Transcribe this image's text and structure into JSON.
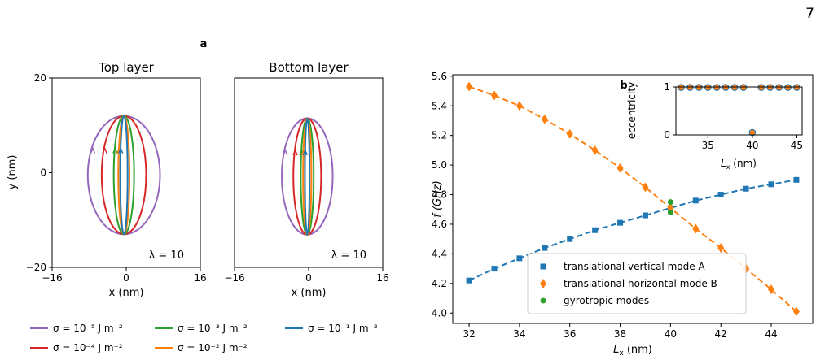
{
  "page_number": "7",
  "colors": {
    "purple": "#9467bd",
    "red": "#d62728",
    "green": "#2ca02c",
    "orange": "#ff7f0e",
    "blue": "#1f77b4"
  },
  "chart_data": [
    {
      "panel": "a",
      "type": "line",
      "title": "Top layer",
      "xlabel": "x (nm)",
      "ylabel": "y (nm)",
      "xlim": [
        -16,
        16
      ],
      "ylim": [
        -20,
        20
      ],
      "xticks": [
        "−16",
        "0",
        "16"
      ],
      "yticks": [
        "20",
        "0",
        "−20"
      ],
      "annotation": "λ = 10",
      "series": [
        {
          "name": "σ = 10⁻⁵ J m⁻²",
          "color": "#9467bd",
          "center_x": -0.5,
          "center_y": -0.5,
          "semi_x": 7.8,
          "semi_y": 12.5
        },
        {
          "name": "σ = 10⁻⁴ J m⁻²",
          "color": "#d62728",
          "center_x": -0.5,
          "center_y": -0.5,
          "semi_x": 4.8,
          "semi_y": 12.5
        },
        {
          "name": "σ = 10⁻³ J m⁻²",
          "color": "#2ca02c",
          "center_x": -0.5,
          "center_y": -0.5,
          "semi_x": 2.2,
          "semi_y": 12.5
        },
        {
          "name": "σ = 10⁻² J m⁻²",
          "color": "#ff7f0e",
          "center_x": -0.5,
          "center_y": -0.5,
          "semi_x": 1.2,
          "semi_y": 12.5
        },
        {
          "name": "σ = 10⁻¹ J m⁻²",
          "color": "#1f77b4",
          "center_x": -0.5,
          "center_y": -0.5,
          "semi_x": 0.8,
          "semi_y": 12.5
        }
      ]
    },
    {
      "panel": "a",
      "type": "line",
      "title": "Bottom layer",
      "xlabel": "x (nm)",
      "xlim": [
        -16,
        16
      ],
      "ylim": [
        -20,
        20
      ],
      "xticks": [
        "−16",
        "0",
        "16"
      ],
      "annotation": "λ = 10",
      "series": [
        {
          "name": "σ = 10⁻⁵ J m⁻²",
          "color": "#9467bd",
          "center_x": -0.3,
          "center_y": -0.8,
          "semi_x": 5.5,
          "semi_y": 12.3
        },
        {
          "name": "σ = 10⁻⁴ J m⁻²",
          "color": "#d62728",
          "center_x": -0.3,
          "center_y": -0.8,
          "semi_x": 3.0,
          "semi_y": 12.3
        },
        {
          "name": "σ = 10⁻³ J m⁻²",
          "color": "#2ca02c",
          "center_x": -0.3,
          "center_y": -0.8,
          "semi_x": 1.4,
          "semi_y": 12.3
        },
        {
          "name": "σ = 10⁻² J m⁻²",
          "color": "#ff7f0e",
          "center_x": -0.3,
          "center_y": -0.8,
          "semi_x": 0.9,
          "semi_y": 12.3
        },
        {
          "name": "σ = 10⁻¹ J m⁻²",
          "color": "#1f77b4",
          "center_x": -0.3,
          "center_y": -0.8,
          "semi_x": 0.5,
          "semi_y": 12.3
        }
      ]
    },
    {
      "panel": "b",
      "type": "line",
      "xlabel": "Lx (nm)",
      "ylabel": "f (GHz)",
      "xlim": [
        31.35,
        45.65
      ],
      "ylim": [
        3.93,
        5.61
      ],
      "xticks": [
        32,
        34,
        36,
        38,
        40,
        42,
        44
      ],
      "yticks": [
        "4.0",
        "4.2",
        "4.4",
        "4.6",
        "4.8",
        "5.0",
        "5.2",
        "5.4",
        "5.6"
      ],
      "legend_position": "lower-center",
      "series": [
        {
          "name": "translational vertical mode A",
          "color": "#1f77b4",
          "marker": "square",
          "x": [
            32,
            33,
            34,
            35,
            36,
            37,
            38,
            39,
            40,
            41,
            42,
            43,
            44,
            45
          ],
          "y": [
            4.22,
            4.3,
            4.37,
            4.44,
            4.5,
            4.56,
            4.61,
            4.66,
            4.71,
            4.76,
            4.8,
            4.84,
            4.87,
            4.9
          ]
        },
        {
          "name": "translational horizontal mode B",
          "color": "#ff7f0e",
          "marker": "diamond",
          "x": [
            32,
            33,
            34,
            35,
            36,
            37,
            38,
            39,
            40,
            41,
            42,
            43,
            44,
            45
          ],
          "y": [
            5.53,
            5.47,
            5.4,
            5.31,
            5.21,
            5.1,
            4.98,
            4.85,
            4.71,
            4.57,
            4.44,
            4.3,
            4.16,
            4.01
          ]
        },
        {
          "name": "gyrotropic modes",
          "color": "#2ca02c",
          "marker": "circle",
          "x": [
            40,
            40
          ],
          "y": [
            4.75,
            4.68
          ]
        }
      ]
    },
    {
      "panel": "b-inset",
      "type": "scatter",
      "xlabel": "Lx (nm)",
      "ylabel": "eccentricity",
      "xlim": [
        31.4,
        45.6
      ],
      "ylim": [
        0,
        1
      ],
      "xticks": [
        35,
        40,
        45
      ],
      "yticks": [
        0,
        1
      ],
      "series": [
        {
          "name": "mode A",
          "color": "#1f77b4",
          "x": [
            32,
            33,
            34,
            35,
            36,
            37,
            38,
            39,
            40,
            41,
            42,
            43,
            44,
            45
          ],
          "y": [
            0.99,
            0.99,
            0.99,
            0.99,
            0.99,
            0.99,
            0.99,
            0.99,
            0.05,
            0.99,
            0.99,
            0.99,
            0.99,
            0.99
          ]
        },
        {
          "name": "mode B",
          "color": "#ff7f0e",
          "x": [
            32,
            33,
            34,
            35,
            36,
            37,
            38,
            39,
            40,
            41,
            42,
            43,
            44,
            45
          ],
          "y": [
            0.99,
            0.99,
            0.99,
            0.99,
            0.99,
            0.99,
            0.99,
            0.99,
            0.05,
            0.99,
            0.99,
            0.99,
            0.99,
            0.99
          ]
        }
      ]
    }
  ],
  "labels": {
    "panel_a": "a",
    "panel_b": "b",
    "top_title": "Top layer",
    "bottom_title": "Bottom layer",
    "xlabel_a": "x (nm)",
    "ylabel_a": "y (nm)",
    "lambda": "λ = 10",
    "ylabel_b": "f (GHz)",
    "inset_ylabel": "eccentricity"
  },
  "legend_a": [
    {
      "text": "σ = 10⁻⁵ J m⁻²",
      "color": "#9467bd"
    },
    {
      "text": "σ = 10⁻³ J m⁻²",
      "color": "#2ca02c"
    },
    {
      "text": "σ = 10⁻¹ J m⁻²",
      "color": "#1f77b4"
    },
    {
      "text": "σ = 10⁻⁴ J m⁻²",
      "color": "#d62728"
    },
    {
      "text": "σ = 10⁻² J m⁻²",
      "color": "#ff7f0e"
    }
  ],
  "legend_b": [
    {
      "text": "translational vertical mode A",
      "color": "#1f77b4",
      "marker": "square"
    },
    {
      "text": "translational horizontal mode B",
      "color": "#ff7f0e",
      "marker": "diamond"
    },
    {
      "text": "gyrotropic modes",
      "color": "#2ca02c",
      "marker": "circle"
    }
  ]
}
